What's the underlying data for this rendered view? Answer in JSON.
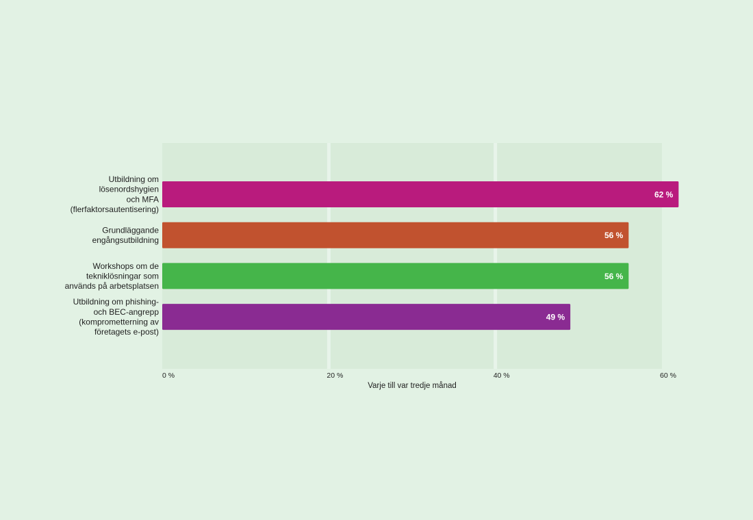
{
  "chart_data": {
    "type": "bar",
    "orientation": "horizontal",
    "categories": [
      [
        "Utbildning om",
        "lösenordshygien",
        "och MFA",
        "(flerfaktorsautentisering)"
      ],
      [
        "Grundläggande",
        "engångsutbildning"
      ],
      [
        "Workshops om de",
        "tekniklösningar som",
        "används på arbetsplatsen"
      ],
      [
        "Utbildning om phishing-",
        "och BEC-angrepp",
        "(komprometterning av",
        "företagets e-post)"
      ]
    ],
    "values": [
      62,
      56,
      56,
      49
    ],
    "value_labels": [
      "62 %",
      "56 %",
      "56 %",
      "49 %"
    ],
    "bar_colors": [
      "#b91b7d",
      "#c1522f",
      "#45b54a",
      "#8a2b92"
    ],
    "xlabel": "Varje till var tredje månad",
    "xticks": [
      0,
      20,
      40,
      60
    ],
    "xtick_labels": [
      "0 %",
      "20 %",
      "40 %",
      "60 %"
    ],
    "xlim": [
      0,
      60
    ],
    "grid": true,
    "colors": {
      "page_bg": "#e2f2e4",
      "plot_band": "#d8ebd9",
      "grid_line": "#e8f4ea",
      "text": "#1e1e1e",
      "value_text": "#ffffff"
    }
  }
}
